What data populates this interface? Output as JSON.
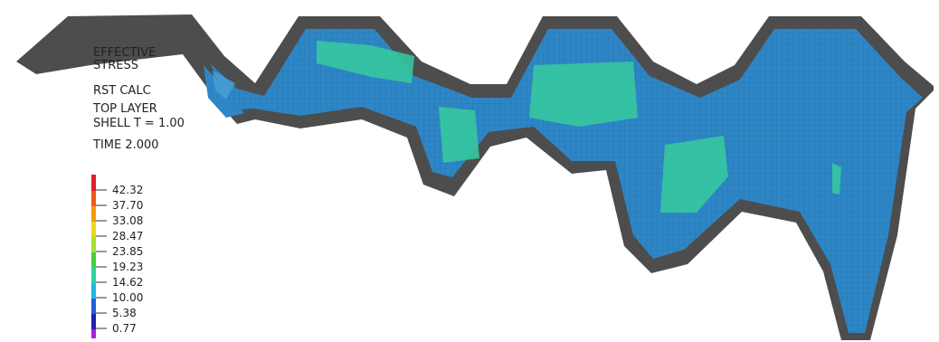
{
  "plot": {
    "labels": [
      "EFFECTIVE",
      "STRESS",
      "RST CALC",
      "TOP LAYER",
      "SHELL T = 1.00",
      "TIME 2.000"
    ],
    "legend": [
      "42.32",
      "37.70",
      "33.08",
      "28.47",
      "23.85",
      "19.23",
      "14.62",
      "10.00",
      "5.38",
      "0.77"
    ]
  }
}
